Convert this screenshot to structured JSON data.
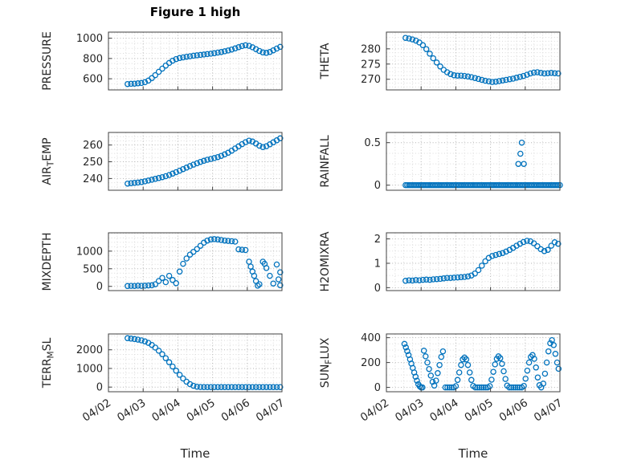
{
  "figure_title": "Figure 1 high",
  "xlabel": "Time",
  "accent_color": "#0072BD",
  "axis_color": "#404040",
  "xlim": [
    0,
    5
  ],
  "x_tick_labels": [
    "04/02",
    "04/03",
    "04/04",
    "04/05",
    "04/06",
    "04/07"
  ],
  "chart_data": [
    {
      "id": "pressure",
      "type": "scatter",
      "ylabel_pre": "PRESSURE",
      "ylabel_sub": "",
      "ylabel_post": "",
      "yticks": [
        600,
        800,
        1000
      ],
      "ylim": [
        490,
        1060
      ],
      "x_start": 0.55,
      "x_step": 0.1,
      "y": [
        548,
        550,
        552,
        555,
        558,
        566,
        582,
        606,
        636,
        668,
        700,
        730,
        756,
        778,
        794,
        804,
        811,
        817,
        822,
        827,
        831,
        835,
        839,
        843,
        847,
        852,
        858,
        864,
        871,
        879,
        888,
        899,
        911,
        922,
        930,
        925,
        910,
        892,
        874,
        860,
        856,
        864,
        880,
        898,
        914
      ]
    },
    {
      "id": "theta",
      "type": "scatter",
      "ylabel_pre": "THETA",
      "ylabel_sub": "",
      "ylabel_post": "",
      "yticks": [
        270,
        275,
        280
      ],
      "ylim": [
        266.5,
        285.5
      ],
      "x_start": 0.55,
      "x_step": 0.1,
      "y": [
        283.6,
        283.4,
        283.1,
        282.7,
        282.1,
        281.2,
        279.9,
        278.4,
        276.9,
        275.5,
        274.2,
        273.1,
        272.3,
        271.7,
        271.3,
        271.2,
        271.2,
        271.1,
        270.9,
        270.7,
        270.4,
        270.1,
        269.8,
        269.5,
        269.3,
        269.1,
        269.2,
        269.4,
        269.6,
        269.8,
        270.0,
        270.2,
        270.5,
        270.8,
        271.1,
        271.5,
        271.9,
        272.2,
        272.3,
        272.1,
        271.9,
        272.0,
        272.1,
        272.0,
        271.9
      ]
    },
    {
      "id": "air-temp",
      "type": "scatter",
      "ylabel_pre": "AIR",
      "ylabel_sub": "T",
      "ylabel_post": "EMP",
      "yticks": [
        240,
        250,
        260
      ],
      "ylim": [
        233,
        267.5
      ],
      "x_start": 0.55,
      "x_step": 0.1,
      "y": [
        237.0,
        237.2,
        237.4,
        237.6,
        237.9,
        238.3,
        238.8,
        239.3,
        239.8,
        240.3,
        240.8,
        241.4,
        242.1,
        242.9,
        243.8,
        244.7,
        245.6,
        246.5,
        247.4,
        248.3,
        249.1,
        249.9,
        250.6,
        251.2,
        251.7,
        252.2,
        252.8,
        253.5,
        254.4,
        255.4,
        256.6,
        257.9,
        259.2,
        260.5,
        261.7,
        262.6,
        262.1,
        260.9,
        259.6,
        258.8,
        259.3,
        260.4,
        261.6,
        262.8,
        264.0
      ]
    },
    {
      "id": "rainfall",
      "type": "scatter",
      "ylabel_pre": "RAINFALL",
      "ylabel_sub": "",
      "ylabel_post": "",
      "yticks": [
        0,
        0.5
      ],
      "ylim": [
        -0.06,
        0.62
      ],
      "x_start": 0.55,
      "x_step": 0.05,
      "y_const": 0,
      "n": 90,
      "extra_points": [
        [
          3.8,
          0.25
        ],
        [
          3.96,
          0.25
        ],
        [
          3.86,
          0.37
        ],
        [
          3.9,
          0.5
        ]
      ]
    },
    {
      "id": "mixdepth",
      "type": "scatter",
      "ylabel_pre": "MIXDEPTH",
      "ylabel_sub": "",
      "ylabel_post": "",
      "yticks": [
        0,
        500,
        1000
      ],
      "ylim": [
        -120,
        1520
      ],
      "x_start": 0.55,
      "x_step": 0.1,
      "y": [
        10,
        15,
        12,
        18,
        14,
        20,
        25,
        30,
        60,
        150,
        240,
        120,
        300,
        180,
        90,
        420,
        640,
        790,
        900,
        980,
        1060,
        1150,
        1240,
        1300,
        1330,
        1340,
        1330,
        1315,
        1300,
        1290,
        1280,
        1270,
        1050,
        1040,
        1030,
        700,
        420,
        150,
        60,
        700,
        520,
        300,
        80,
        620,
        400
      ],
      "extra_points": [
        [
          4.1,
          560
        ],
        [
          4.2,
          300
        ],
        [
          4.3,
          20
        ],
        [
          4.5,
          640
        ],
        [
          4.9,
          200
        ],
        [
          4.95,
          30
        ]
      ]
    },
    {
      "id": "h2omixra",
      "type": "scatter",
      "ylabel_pre": "H2OMIXRA",
      "ylabel_sub": "",
      "ylabel_post": "",
      "yticks": [
        0,
        1,
        2
      ],
      "ylim": [
        -0.12,
        2.25
      ],
      "x_start": 0.55,
      "x_step": 0.1,
      "y": [
        0.28,
        0.3,
        0.29,
        0.31,
        0.3,
        0.32,
        0.33,
        0.32,
        0.34,
        0.35,
        0.36,
        0.38,
        0.4,
        0.4,
        0.41,
        0.42,
        0.43,
        0.44,
        0.46,
        0.5,
        0.58,
        0.72,
        0.9,
        1.08,
        1.22,
        1.3,
        1.34,
        1.38,
        1.42,
        1.48,
        1.55,
        1.63,
        1.72,
        1.8,
        1.87,
        1.92,
        1.9,
        1.82,
        1.7,
        1.58,
        1.5,
        1.55,
        1.72,
        1.86,
        1.8
      ]
    },
    {
      "id": "terr-msl",
      "type": "scatter",
      "bottom": true,
      "ylabel_pre": "TERR",
      "ylabel_sub": "M",
      "ylabel_post": "SL",
      "yticks": [
        0,
        1000,
        2000
      ],
      "ylim": [
        -250,
        2850
      ],
      "x_start": 0.55,
      "x_step": 0.1,
      "y": [
        2620,
        2600,
        2575,
        2545,
        2505,
        2450,
        2370,
        2260,
        2120,
        1950,
        1760,
        1550,
        1330,
        1100,
        880,
        660,
        460,
        290,
        160,
        70,
        20,
        5,
        0,
        0,
        0,
        0,
        0,
        0,
        0,
        0,
        0,
        0,
        0,
        0,
        0,
        0,
        0,
        0,
        0,
        0,
        0,
        0,
        0,
        0,
        0
      ]
    },
    {
      "id": "sun-flux",
      "type": "scatter",
      "bottom": true,
      "ylabel_pre": "SUN",
      "ylabel_sub": "F",
      "ylabel_post": "LUX",
      "yticks": [
        0,
        200,
        400
      ],
      "ylim": [
        -35,
        430
      ],
      "points": [
        [
          0.52,
          350
        ],
        [
          0.56,
          322
        ],
        [
          0.6,
          292
        ],
        [
          0.64,
          260
        ],
        [
          0.68,
          226
        ],
        [
          0.72,
          192
        ],
        [
          0.76,
          156
        ],
        [
          0.8,
          120
        ],
        [
          0.84,
          86
        ],
        [
          0.88,
          54
        ],
        [
          0.92,
          26
        ],
        [
          0.96,
          8
        ],
        [
          1.0,
          0
        ],
        [
          1.04,
          0
        ],
        [
          1.08,
          295
        ],
        [
          1.13,
          250
        ],
        [
          1.18,
          200
        ],
        [
          1.23,
          148
        ],
        [
          1.28,
          95
        ],
        [
          1.33,
          45
        ],
        [
          1.38,
          15
        ],
        [
          1.43,
          55
        ],
        [
          1.48,
          115
        ],
        [
          1.53,
          180
        ],
        [
          1.58,
          245
        ],
        [
          1.63,
          290
        ],
        [
          1.7,
          0
        ],
        [
          1.76,
          0
        ],
        [
          1.82,
          0
        ],
        [
          1.88,
          0
        ],
        [
          1.94,
          0
        ],
        [
          2.0,
          10
        ],
        [
          2.05,
          60
        ],
        [
          2.1,
          120
        ],
        [
          2.15,
          180
        ],
        [
          2.2,
          225
        ],
        [
          2.25,
          240
        ],
        [
          2.3,
          225
        ],
        [
          2.35,
          180
        ],
        [
          2.4,
          120
        ],
        [
          2.45,
          60
        ],
        [
          2.5,
          12
        ],
        [
          2.56,
          0
        ],
        [
          2.62,
          0
        ],
        [
          2.68,
          0
        ],
        [
          2.74,
          0
        ],
        [
          2.8,
          0
        ],
        [
          2.86,
          0
        ],
        [
          2.92,
          0
        ],
        [
          2.98,
          10
        ],
        [
          3.03,
          62
        ],
        [
          3.08,
          125
        ],
        [
          3.13,
          185
        ],
        [
          3.18,
          230
        ],
        [
          3.23,
          250
        ],
        [
          3.28,
          235
        ],
        [
          3.33,
          190
        ],
        [
          3.38,
          130
        ],
        [
          3.43,
          68
        ],
        [
          3.48,
          15
        ],
        [
          3.54,
          0
        ],
        [
          3.6,
          0
        ],
        [
          3.66,
          0
        ],
        [
          3.72,
          0
        ],
        [
          3.78,
          0
        ],
        [
          3.84,
          0
        ],
        [
          3.9,
          0
        ],
        [
          3.96,
          12
        ],
        [
          4.01,
          70
        ],
        [
          4.06,
          135
        ],
        [
          4.11,
          200
        ],
        [
          4.16,
          245
        ],
        [
          4.21,
          260
        ],
        [
          4.26,
          230
        ],
        [
          4.31,
          160
        ],
        [
          4.36,
          80
        ],
        [
          4.41,
          18
        ],
        [
          4.46,
          0
        ],
        [
          4.52,
          30
        ],
        [
          4.57,
          110
        ],
        [
          4.62,
          200
        ],
        [
          4.67,
          290
        ],
        [
          4.72,
          355
        ],
        [
          4.77,
          380
        ],
        [
          4.82,
          340
        ],
        [
          4.87,
          270
        ],
        [
          4.92,
          200
        ],
        [
          4.96,
          150
        ]
      ]
    }
  ]
}
